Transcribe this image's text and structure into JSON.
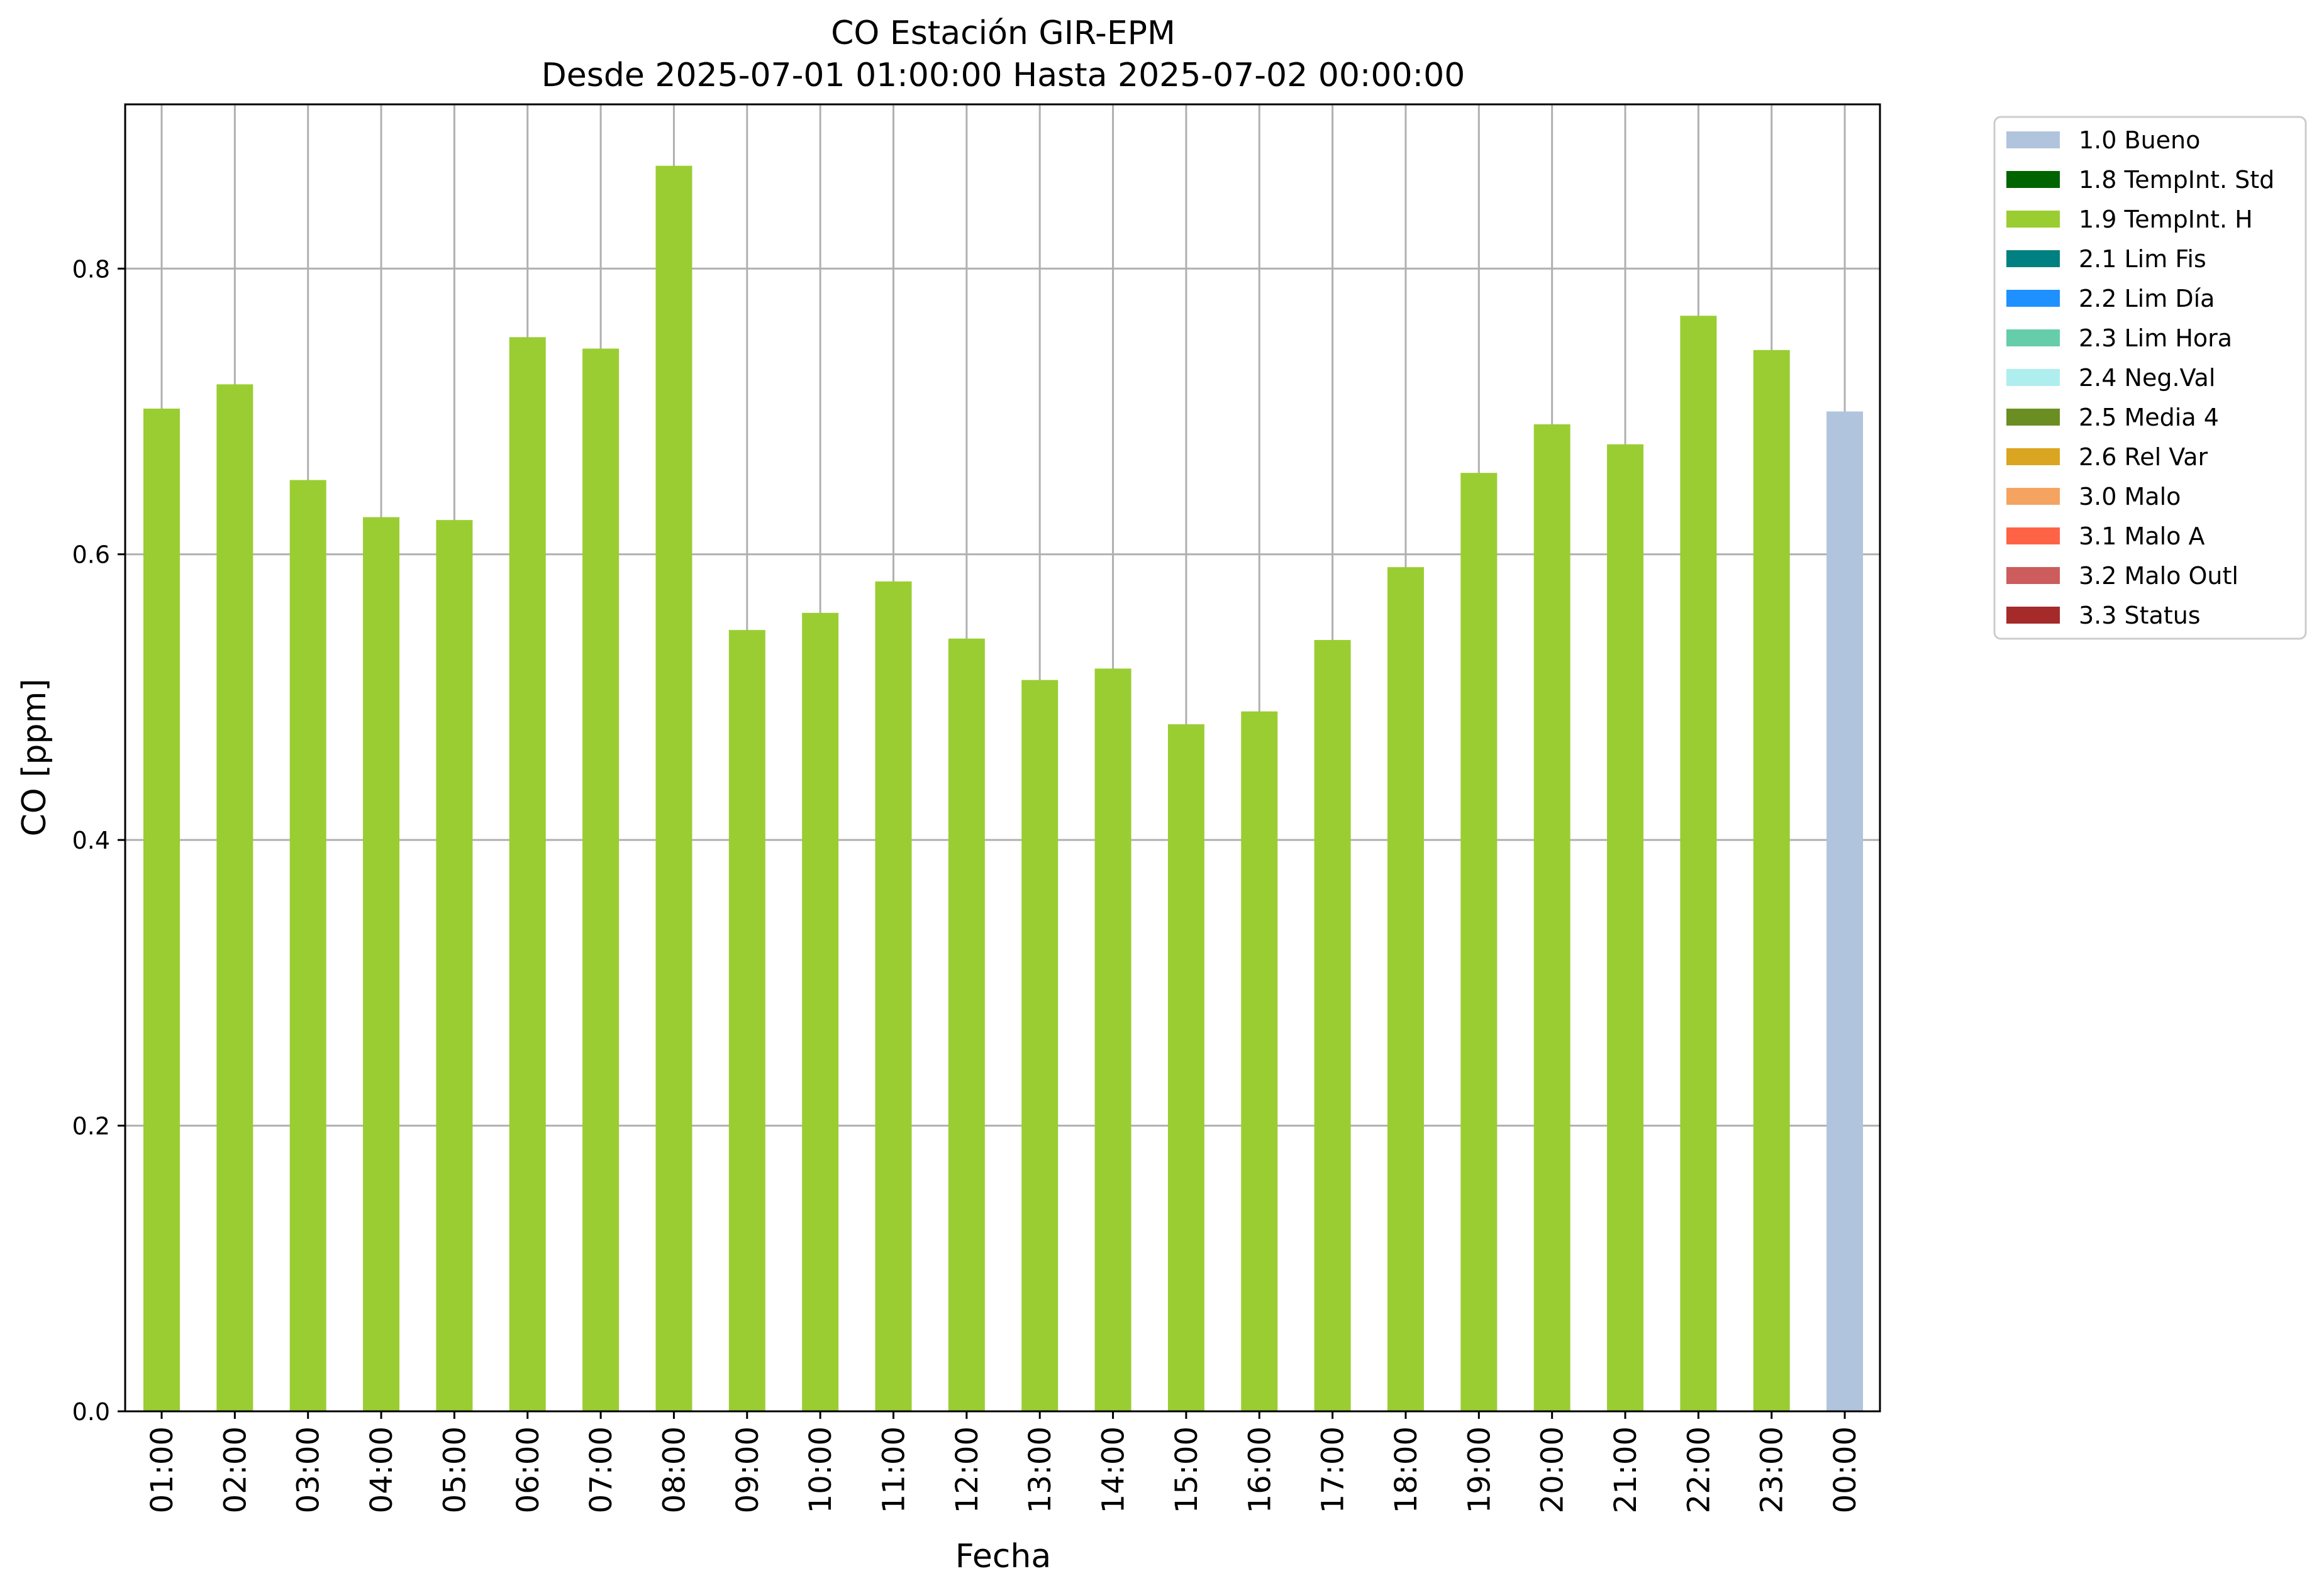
{
  "chart_data": {
    "type": "bar",
    "title": "CO Estación GIR-EPM",
    "subtitle": "Desde 2025-07-01 01:00:00 Hasta 2025-07-02 00:00:00",
    "xlabel": "Fecha",
    "ylabel": "CO [ppm]",
    "ylim": [
      0,
      0.915
    ],
    "yticks": [
      0.0,
      0.2,
      0.4,
      0.6,
      0.8
    ],
    "ytick_labels": [
      "0.0",
      "0.2",
      "0.4",
      "0.6",
      "0.8"
    ],
    "grid": true,
    "legend_position": "outside-right-top",
    "categories": [
      "01:00",
      "02:00",
      "03:00",
      "04:00",
      "05:00",
      "06:00",
      "07:00",
      "08:00",
      "09:00",
      "10:00",
      "11:00",
      "12:00",
      "13:00",
      "14:00",
      "15:00",
      "16:00",
      "17:00",
      "18:00",
      "19:00",
      "20:00",
      "21:00",
      "22:00",
      "23:00",
      "00:00"
    ],
    "values": [
      0.702,
      0.719,
      0.652,
      0.626,
      0.624,
      0.752,
      0.744,
      0.872,
      0.547,
      0.559,
      0.581,
      0.541,
      0.512,
      0.52,
      0.481,
      0.49,
      0.54,
      0.591,
      0.657,
      0.691,
      0.677,
      0.767,
      0.743,
      0.7
    ],
    "bar_flags": [
      "1.9",
      "1.9",
      "1.9",
      "1.9",
      "1.9",
      "1.9",
      "1.9",
      "1.9",
      "1.9",
      "1.9",
      "1.9",
      "1.9",
      "1.9",
      "1.9",
      "1.9",
      "1.9",
      "1.9",
      "1.9",
      "1.9",
      "1.9",
      "1.9",
      "1.9",
      "1.9",
      "1.0"
    ],
    "legend": [
      {
        "code": "1.0",
        "label": "1.0 Bueno",
        "color": "#b0c4de"
      },
      {
        "code": "1.8",
        "label": "1.8 TempInt. Std",
        "color": "#006400"
      },
      {
        "code": "1.9",
        "label": "1.9 TempInt. H",
        "color": "#9acd32"
      },
      {
        "code": "2.1",
        "label": "2.1 Lim Fis",
        "color": "#008080"
      },
      {
        "code": "2.2",
        "label": "2.2 Lim Día",
        "color": "#1e90ff"
      },
      {
        "code": "2.3",
        "label": "2.3 Lim Hora",
        "color": "#66cdaa"
      },
      {
        "code": "2.4",
        "label": "2.4 Neg.Val",
        "color": "#afeeee"
      },
      {
        "code": "2.5",
        "label": "2.5 Media 4",
        "color": "#6b8e23"
      },
      {
        "code": "2.6",
        "label": "2.6 Rel Var",
        "color": "#daa520"
      },
      {
        "code": "3.0",
        "label": "3.0 Malo",
        "color": "#f4a460"
      },
      {
        "code": "3.1",
        "label": "3.1 Malo A",
        "color": "#ff6347"
      },
      {
        "code": "3.2",
        "label": "3.2 Malo Outl",
        "color": "#cd5c5c"
      },
      {
        "code": "3.3",
        "label": "3.3 Status",
        "color": "#a52a2a"
      }
    ],
    "grid_color": "#b0b0b0"
  }
}
